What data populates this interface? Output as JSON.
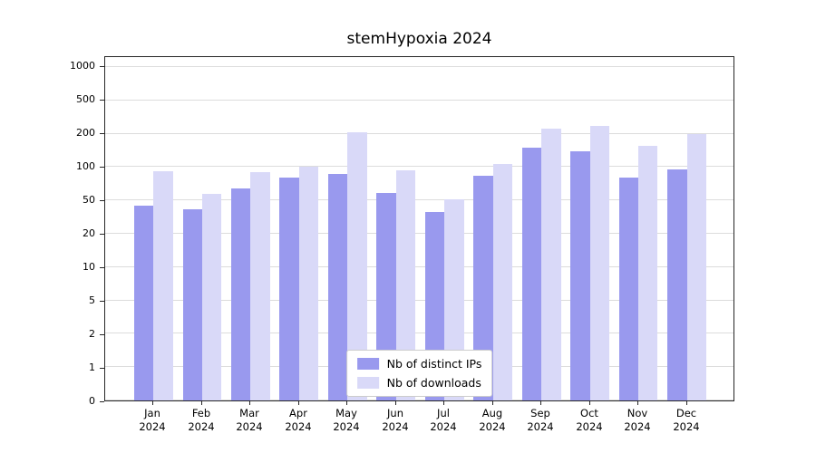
{
  "chart_data": {
    "type": "bar",
    "title": "stemHypoxia 2024",
    "categories": [
      "Jan 2024",
      "Feb 2024",
      "Mar 2024",
      "Apr 2024",
      "May 2024",
      "Jun 2024",
      "Jul 2024",
      "Aug 2024",
      "Sep 2024",
      "Oct 2024",
      "Nov 2024",
      "Dec 2024"
    ],
    "series": [
      {
        "name": "Nb of distinct IPs",
        "color": "#9999ee",
        "values": [
          43,
          39,
          64,
          80,
          87,
          58,
          36,
          84,
          150,
          140,
          80,
          95
        ]
      },
      {
        "name": "Nb of downloads",
        "color": "#d9d9f8",
        "values": [
          92,
          57,
          90,
          100,
          210,
          93,
          51,
          107,
          230,
          245,
          155,
          200
        ]
      }
    ],
    "y_ticks": [
      0,
      1,
      2,
      5,
      10,
      20,
      50,
      100,
      200,
      500,
      1000
    ],
    "scale": "log-like with evenly spaced labeled ticks",
    "ylim": [
      0,
      1300
    ],
    "xlabel": "",
    "ylabel": "",
    "grid": true,
    "legend_position": "lower center"
  },
  "colors": {
    "grid": "#dcdcdc",
    "axis": "#262626",
    "background": "#ffffff",
    "text": "#000000"
  }
}
